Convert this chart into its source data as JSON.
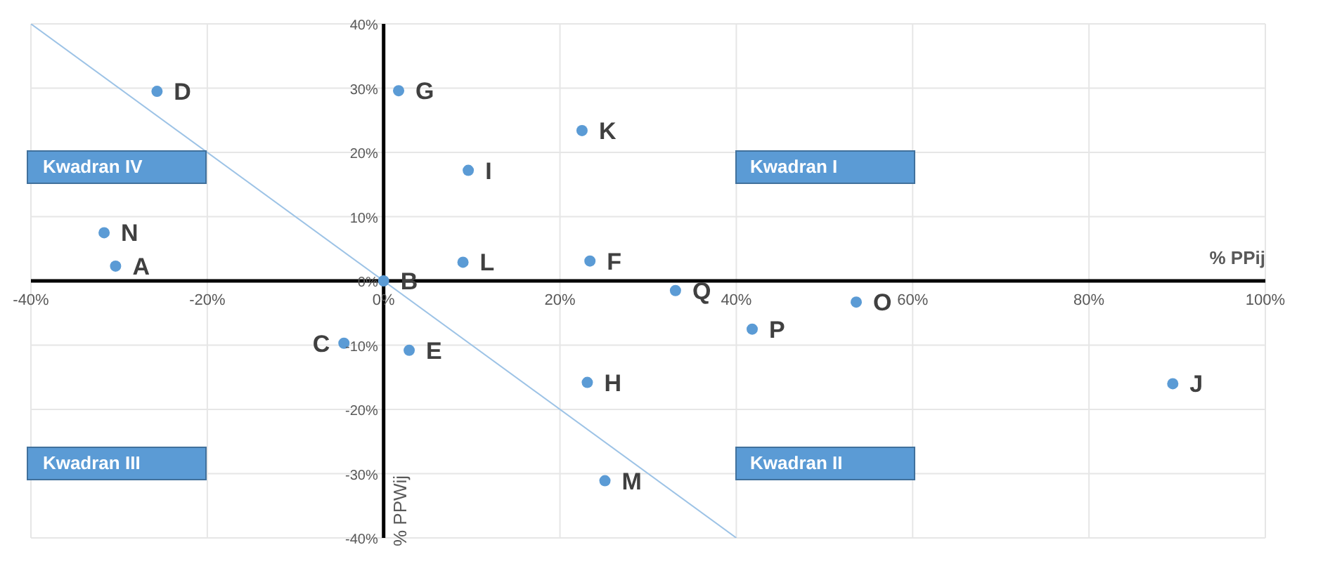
{
  "chart_data": {
    "type": "scatter",
    "xlabel": "% PPij",
    "ylabel": "% PPWij",
    "xlim": [
      -40,
      100
    ],
    "ylim": [
      -40,
      40
    ],
    "xticks": [
      {
        "value": -40,
        "label": "-40%"
      },
      {
        "value": -20,
        "label": "-20%"
      },
      {
        "value": 0,
        "label": "0%"
      },
      {
        "value": 20,
        "label": "20%"
      },
      {
        "value": 40,
        "label": "40%"
      },
      {
        "value": 60,
        "label": "60%"
      },
      {
        "value": 80,
        "label": "80%"
      },
      {
        "value": 100,
        "label": "100%"
      }
    ],
    "yticks": [
      {
        "value": -40,
        "label": "-40%"
      },
      {
        "value": -30,
        "label": "-30%"
      },
      {
        "value": -20,
        "label": "-20%"
      },
      {
        "value": -10,
        "label": "-10%"
      },
      {
        "value": 0,
        "label": "0%"
      },
      {
        "value": 10,
        "label": "10%"
      },
      {
        "value": 20,
        "label": "20%"
      },
      {
        "value": 30,
        "label": "30%"
      },
      {
        "value": 40,
        "label": "40%"
      }
    ],
    "grid": true,
    "marker": "circle",
    "series": [
      {
        "color": "#5b9bd5",
        "x": [
          -30.4,
          0,
          -4.5,
          -25.7,
          23.4,
          1.7,
          23.1,
          9.6,
          89.5,
          22.5,
          9.0,
          25.1,
          -31.7,
          53.6,
          41.8,
          33.1,
          2.9
        ],
        "values": [
          2.3,
          0,
          -9.7,
          29.5,
          3.1,
          29.6,
          -15.8,
          17.2,
          -16.0,
          23.4,
          2.9,
          -31.1,
          7.5,
          -3.3,
          -7.5,
          -1.5,
          -10.8
        ],
        "value_labels": [
          "A",
          "B",
          "C",
          "D",
          "F",
          "G",
          "H",
          "I",
          "J",
          "K",
          "L",
          "M",
          "N",
          "O",
          "P",
          "Q",
          "E"
        ]
      },
      {
        "type": "line",
        "color": "#9dc3e6",
        "marker": "none",
        "x": [
          -40,
          40
        ],
        "values": [
          40,
          -40
        ]
      }
    ],
    "annotations": [
      "Kwadran I",
      "Kwadran II",
      "Kwadran III",
      "Kwadran IV"
    ]
  }
}
